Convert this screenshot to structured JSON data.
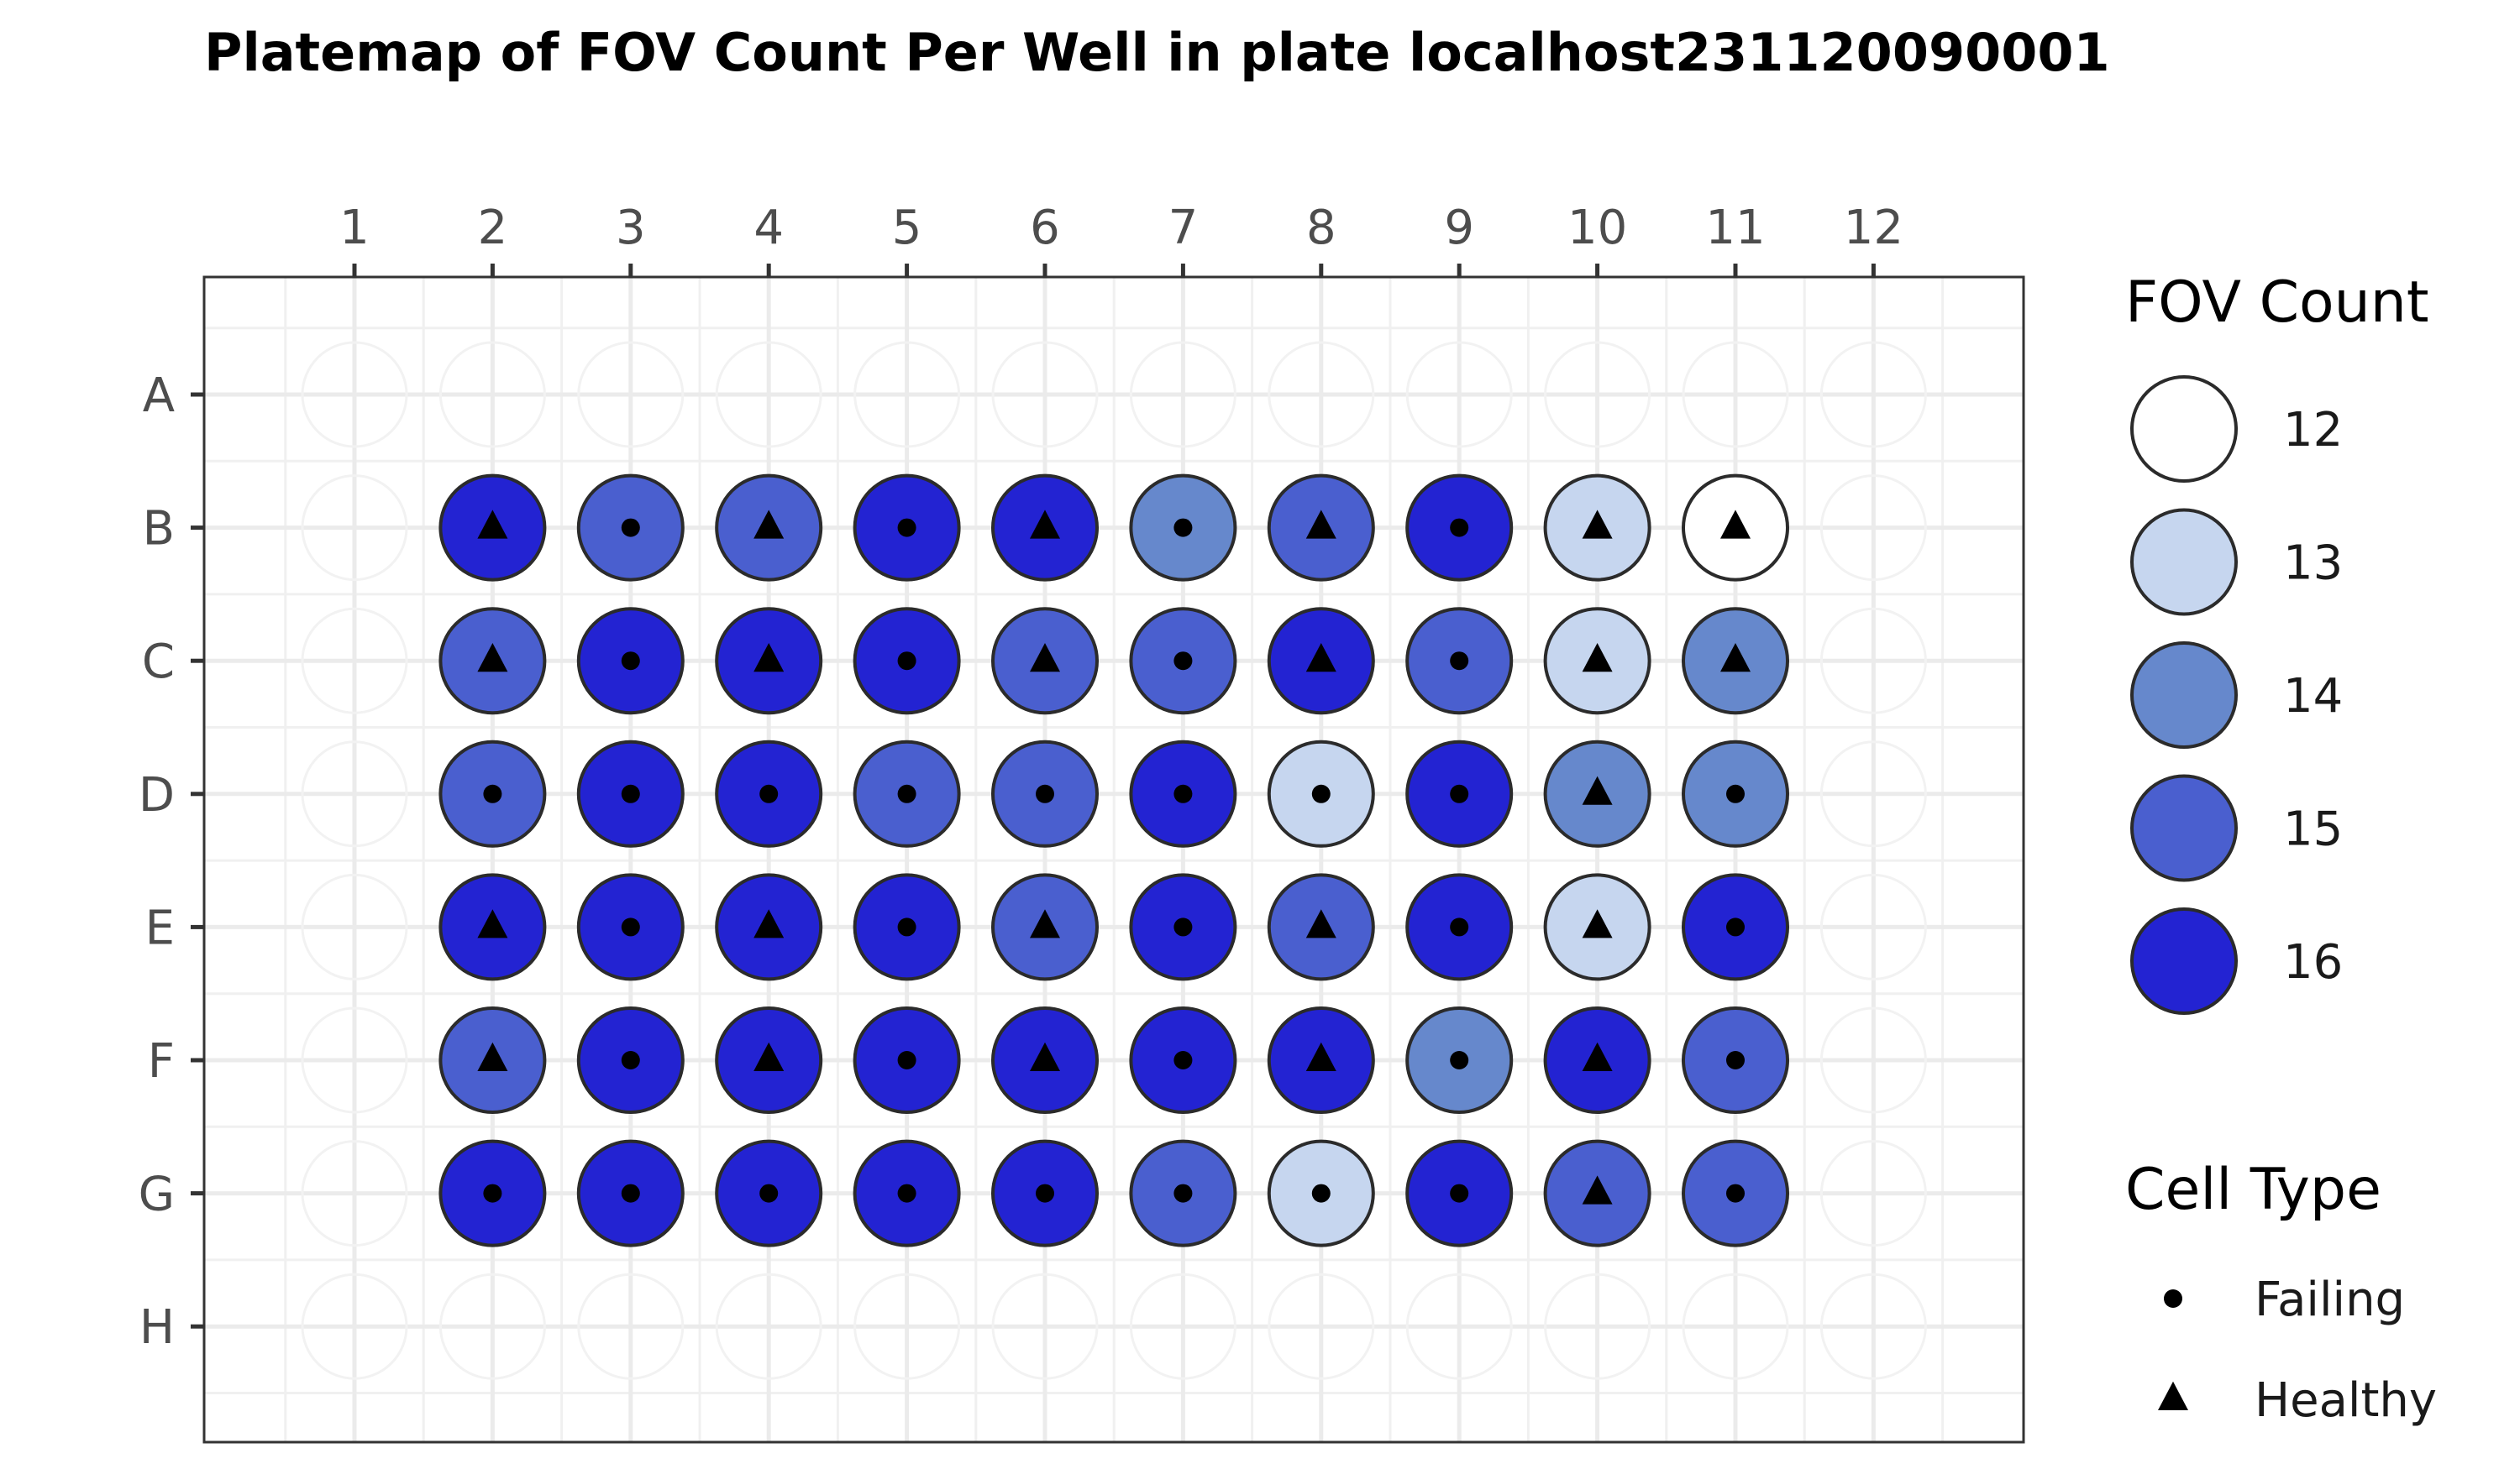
{
  "chart_data": {
    "type": "heatmap",
    "title": "Platemap of FOV Count Per Well in plate localhost231120090001",
    "xlabel": "",
    "ylabel": "",
    "columns": [
      "1",
      "2",
      "3",
      "4",
      "5",
      "6",
      "7",
      "8",
      "9",
      "10",
      "11",
      "12"
    ],
    "rows": [
      "A",
      "B",
      "C",
      "D",
      "E",
      "F",
      "G",
      "H"
    ],
    "grid": true,
    "legend_position": "right",
    "size_legend": {
      "title": "FOV Count",
      "values": [
        12,
        13,
        14,
        15,
        16
      ]
    },
    "shape_legend": {
      "title": "Cell Type",
      "entries": [
        {
          "label": "Failing",
          "shape": "circle"
        },
        {
          "label": "Healthy",
          "shape": "triangle"
        }
      ]
    },
    "color_scale": {
      "12": "#ffffff",
      "13": "#c6d6ef",
      "14": "#6688cc",
      "15": "#4a5fcf",
      "16": "#2323d2"
    },
    "wells": [
      {
        "row": "B",
        "col": 2,
        "fov": 16,
        "cell_type": "Healthy"
      },
      {
        "row": "B",
        "col": 3,
        "fov": 15,
        "cell_type": "Failing"
      },
      {
        "row": "B",
        "col": 4,
        "fov": 15,
        "cell_type": "Healthy"
      },
      {
        "row": "B",
        "col": 5,
        "fov": 16,
        "cell_type": "Failing"
      },
      {
        "row": "B",
        "col": 6,
        "fov": 16,
        "cell_type": "Healthy"
      },
      {
        "row": "B",
        "col": 7,
        "fov": 14,
        "cell_type": "Failing"
      },
      {
        "row": "B",
        "col": 8,
        "fov": 15,
        "cell_type": "Healthy"
      },
      {
        "row": "B",
        "col": 9,
        "fov": 16,
        "cell_type": "Failing"
      },
      {
        "row": "B",
        "col": 10,
        "fov": 13,
        "cell_type": "Healthy"
      },
      {
        "row": "B",
        "col": 11,
        "fov": 12,
        "cell_type": "Healthy"
      },
      {
        "row": "C",
        "col": 2,
        "fov": 15,
        "cell_type": "Healthy"
      },
      {
        "row": "C",
        "col": 3,
        "fov": 16,
        "cell_type": "Failing"
      },
      {
        "row": "C",
        "col": 4,
        "fov": 16,
        "cell_type": "Healthy"
      },
      {
        "row": "C",
        "col": 5,
        "fov": 16,
        "cell_type": "Failing"
      },
      {
        "row": "C",
        "col": 6,
        "fov": 15,
        "cell_type": "Healthy"
      },
      {
        "row": "C",
        "col": 7,
        "fov": 15,
        "cell_type": "Failing"
      },
      {
        "row": "C",
        "col": 8,
        "fov": 16,
        "cell_type": "Healthy"
      },
      {
        "row": "C",
        "col": 9,
        "fov": 15,
        "cell_type": "Failing"
      },
      {
        "row": "C",
        "col": 10,
        "fov": 13,
        "cell_type": "Healthy"
      },
      {
        "row": "C",
        "col": 11,
        "fov": 14,
        "cell_type": "Healthy"
      },
      {
        "row": "D",
        "col": 2,
        "fov": 15,
        "cell_type": "Failing"
      },
      {
        "row": "D",
        "col": 3,
        "fov": 16,
        "cell_type": "Failing"
      },
      {
        "row": "D",
        "col": 4,
        "fov": 16,
        "cell_type": "Failing"
      },
      {
        "row": "D",
        "col": 5,
        "fov": 15,
        "cell_type": "Failing"
      },
      {
        "row": "D",
        "col": 6,
        "fov": 15,
        "cell_type": "Failing"
      },
      {
        "row": "D",
        "col": 7,
        "fov": 16,
        "cell_type": "Failing"
      },
      {
        "row": "D",
        "col": 8,
        "fov": 13,
        "cell_type": "Failing"
      },
      {
        "row": "D",
        "col": 9,
        "fov": 16,
        "cell_type": "Failing"
      },
      {
        "row": "D",
        "col": 10,
        "fov": 14,
        "cell_type": "Healthy"
      },
      {
        "row": "D",
        "col": 11,
        "fov": 14,
        "cell_type": "Failing"
      },
      {
        "row": "E",
        "col": 2,
        "fov": 16,
        "cell_type": "Healthy"
      },
      {
        "row": "E",
        "col": 3,
        "fov": 16,
        "cell_type": "Failing"
      },
      {
        "row": "E",
        "col": 4,
        "fov": 16,
        "cell_type": "Healthy"
      },
      {
        "row": "E",
        "col": 5,
        "fov": 16,
        "cell_type": "Failing"
      },
      {
        "row": "E",
        "col": 6,
        "fov": 15,
        "cell_type": "Healthy"
      },
      {
        "row": "E",
        "col": 7,
        "fov": 16,
        "cell_type": "Failing"
      },
      {
        "row": "E",
        "col": 8,
        "fov": 15,
        "cell_type": "Healthy"
      },
      {
        "row": "E",
        "col": 9,
        "fov": 16,
        "cell_type": "Failing"
      },
      {
        "row": "E",
        "col": 10,
        "fov": 13,
        "cell_type": "Healthy"
      },
      {
        "row": "E",
        "col": 11,
        "fov": 16,
        "cell_type": "Failing"
      },
      {
        "row": "F",
        "col": 2,
        "fov": 15,
        "cell_type": "Healthy"
      },
      {
        "row": "F",
        "col": 3,
        "fov": 16,
        "cell_type": "Failing"
      },
      {
        "row": "F",
        "col": 4,
        "fov": 16,
        "cell_type": "Healthy"
      },
      {
        "row": "F",
        "col": 5,
        "fov": 16,
        "cell_type": "Failing"
      },
      {
        "row": "F",
        "col": 6,
        "fov": 16,
        "cell_type": "Healthy"
      },
      {
        "row": "F",
        "col": 7,
        "fov": 16,
        "cell_type": "Failing"
      },
      {
        "row": "F",
        "col": 8,
        "fov": 16,
        "cell_type": "Healthy"
      },
      {
        "row": "F",
        "col": 9,
        "fov": 14,
        "cell_type": "Failing"
      },
      {
        "row": "F",
        "col": 10,
        "fov": 16,
        "cell_type": "Healthy"
      },
      {
        "row": "F",
        "col": 11,
        "fov": 15,
        "cell_type": "Failing"
      },
      {
        "row": "G",
        "col": 2,
        "fov": 16,
        "cell_type": "Failing"
      },
      {
        "row": "G",
        "col": 3,
        "fov": 16,
        "cell_type": "Failing"
      },
      {
        "row": "G",
        "col": 4,
        "fov": 16,
        "cell_type": "Failing"
      },
      {
        "row": "G",
        "col": 5,
        "fov": 16,
        "cell_type": "Failing"
      },
      {
        "row": "G",
        "col": 6,
        "fov": 16,
        "cell_type": "Failing"
      },
      {
        "row": "G",
        "col": 7,
        "fov": 15,
        "cell_type": "Failing"
      },
      {
        "row": "G",
        "col": 8,
        "fov": 13,
        "cell_type": "Failing"
      },
      {
        "row": "G",
        "col": 9,
        "fov": 16,
        "cell_type": "Failing"
      },
      {
        "row": "G",
        "col": 10,
        "fov": 15,
        "cell_type": "Healthy"
      },
      {
        "row": "G",
        "col": 11,
        "fov": 15,
        "cell_type": "Failing"
      }
    ]
  }
}
